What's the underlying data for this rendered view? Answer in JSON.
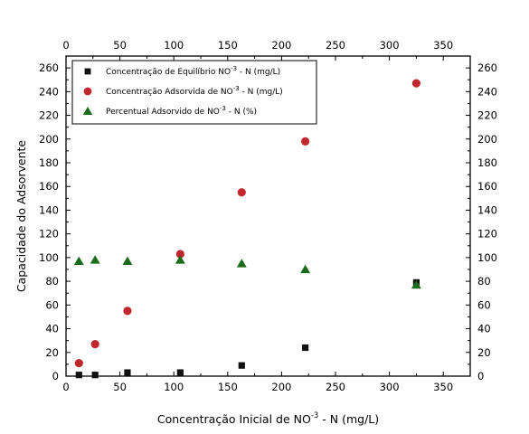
{
  "chart_data": {
    "type": "scatter",
    "xlabel": "Concentração Inicial de NO",
    "xlabel_sup": "-3",
    "xlabel_tail": " - N (mg/L)",
    "ylabel": "Capacidade do Adsorvente",
    "xlim": [
      0,
      375
    ],
    "ylim": [
      0,
      270
    ],
    "xticks": [
      0,
      50,
      100,
      150,
      200,
      250,
      300,
      350
    ],
    "yticks": [
      0,
      20,
      40,
      60,
      80,
      100,
      120,
      140,
      160,
      180,
      200,
      220,
      240,
      260
    ],
    "legend_position": "top-left",
    "series": [
      {
        "name": "Concentração de Equilíbrio NO",
        "name_sup": "-3",
        "name_tail": " - N (mg/L)",
        "marker": "square",
        "color": "#111111",
        "x": [
          12,
          27,
          57,
          106,
          163,
          222,
          325
        ],
        "y": [
          1,
          1,
          3,
          3,
          9,
          24,
          79
        ]
      },
      {
        "name": "Concentração Adsorvida de NO",
        "name_sup": "-3",
        "name_tail": " - N (mg/L)",
        "marker": "circle",
        "color": "#c0282d",
        "x": [
          12,
          27,
          57,
          106,
          163,
          222,
          325
        ],
        "y": [
          11,
          27,
          55,
          103,
          155,
          198,
          247
        ]
      },
      {
        "name": "Percentual Adsorvido de NO",
        "name_sup": "-3",
        "name_tail": " - N (%)",
        "marker": "triangle",
        "color": "#1a6b1a",
        "x": [
          12,
          27,
          57,
          106,
          163,
          222,
          325
        ],
        "y": [
          97,
          98,
          97,
          98,
          95,
          90,
          77
        ]
      }
    ]
  }
}
